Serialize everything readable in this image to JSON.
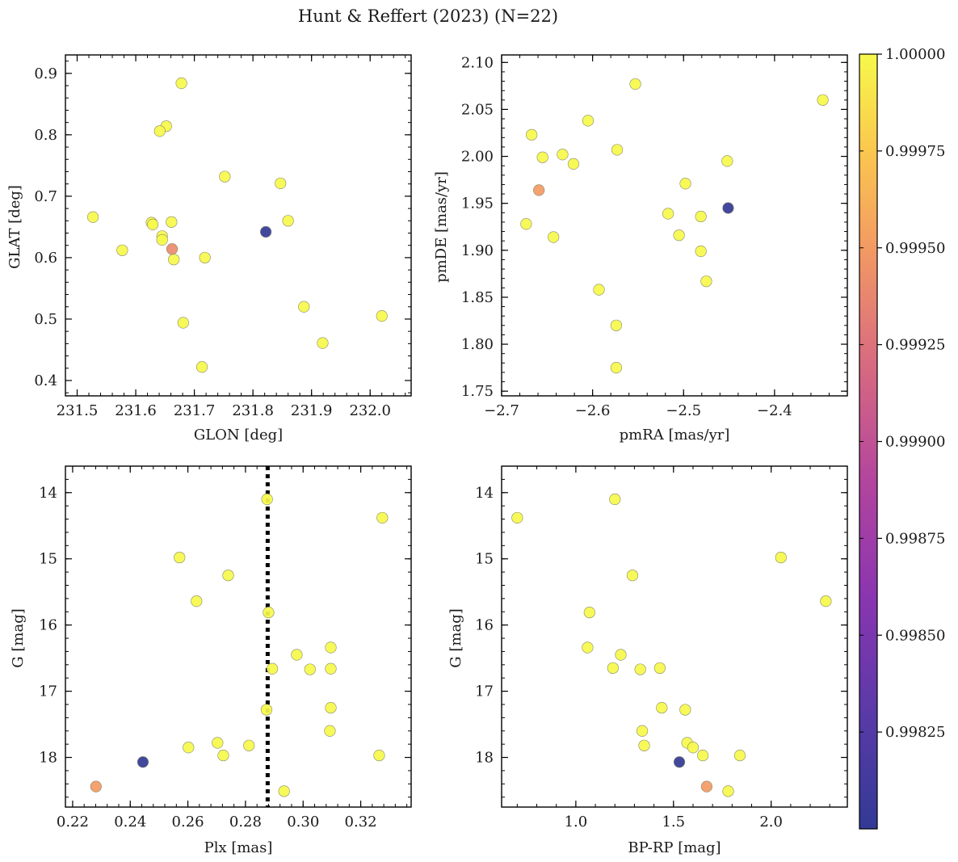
{
  "figure": {
    "title": "Hunt & Reffert (2023) (N=22)"
  },
  "colorbar": {
    "colormap": "plasma",
    "range": [
      0.998,
      1.0
    ],
    "ticks": [
      0.99825,
      0.9985,
      0.99875,
      0.999,
      0.99925,
      0.9995,
      0.99975,
      1.0
    ],
    "tick_labels": [
      "0.99825",
      "0.99850",
      "0.99875",
      "0.99900",
      "0.99925",
      "0.99950",
      "0.99975",
      "1.00000"
    ]
  },
  "chart_data": [
    {
      "type": "scatter",
      "id": "glon-glat",
      "xlabel": "GLON [deg]",
      "ylabel": "GLAT [deg]",
      "xlim": [
        231.48,
        232.07
      ],
      "ylim": [
        0.375,
        0.93
      ],
      "y_inverted": false,
      "xticks": [
        231.5,
        231.6,
        231.7,
        231.8,
        231.9,
        232.0
      ],
      "xtick_labels": [
        "231.5",
        "231.6",
        "231.7",
        "231.8",
        "231.9",
        "232.0"
      ],
      "yticks": [
        0.4,
        0.5,
        0.6,
        0.7,
        0.8,
        0.9
      ],
      "ytick_labels": [
        "0.4",
        "0.5",
        "0.6",
        "0.7",
        "0.8",
        "0.9"
      ],
      "points": [
        {
          "x": 231.678,
          "y": 0.884,
          "c": 1.0
        },
        {
          "x": 231.652,
          "y": 0.814,
          "c": 1.0
        },
        {
          "x": 231.641,
          "y": 0.806,
          "c": 1.0
        },
        {
          "x": 231.752,
          "y": 0.732,
          "c": 1.0
        },
        {
          "x": 231.847,
          "y": 0.721,
          "c": 1.0
        },
        {
          "x": 231.527,
          "y": 0.666,
          "c": 1.0
        },
        {
          "x": 231.86,
          "y": 0.66,
          "c": 1.0
        },
        {
          "x": 231.661,
          "y": 0.658,
          "c": 1.0
        },
        {
          "x": 231.627,
          "y": 0.657,
          "c": 1.0
        },
        {
          "x": 231.629,
          "y": 0.654,
          "c": 1.0
        },
        {
          "x": 231.822,
          "y": 0.642,
          "c": 0.998
        },
        {
          "x": 231.645,
          "y": 0.635,
          "c": 1.0
        },
        {
          "x": 231.645,
          "y": 0.629,
          "c": 1.0
        },
        {
          "x": 231.577,
          "y": 0.612,
          "c": 1.0
        },
        {
          "x": 231.662,
          "y": 0.614,
          "c": 0.9994
        },
        {
          "x": 231.718,
          "y": 0.6,
          "c": 1.0
        },
        {
          "x": 231.665,
          "y": 0.597,
          "c": 1.0
        },
        {
          "x": 231.887,
          "y": 0.52,
          "c": 1.0
        },
        {
          "x": 232.02,
          "y": 0.505,
          "c": 1.0
        },
        {
          "x": 231.681,
          "y": 0.494,
          "c": 1.0
        },
        {
          "x": 231.919,
          "y": 0.461,
          "c": 1.0
        },
        {
          "x": 231.713,
          "y": 0.422,
          "c": 1.0
        }
      ]
    },
    {
      "type": "scatter",
      "id": "pmra-pmde",
      "xlabel": "pmRA [mas/yr]",
      "ylabel": "pmDE [mas/yr]",
      "xlim": [
        -2.7,
        -2.32
      ],
      "ylim": [
        1.745,
        2.108
      ],
      "y_inverted": false,
      "xticks": [
        -2.7,
        -2.6,
        -2.5,
        -2.4
      ],
      "xtick_labels": [
        "−2.7",
        "−2.6",
        "−2.5",
        "−2.4"
      ],
      "yticks": [
        1.75,
        1.8,
        1.85,
        1.9,
        1.95,
        2.0,
        2.05,
        2.1
      ],
      "ytick_labels": [
        "1.75",
        "1.80",
        "1.85",
        "1.90",
        "1.95",
        "2.00",
        "2.05",
        "2.10"
      ],
      "points": [
        {
          "x": -2.553,
          "y": 2.077,
          "c": 1.0
        },
        {
          "x": -2.347,
          "y": 2.06,
          "c": 1.0
        },
        {
          "x": -2.605,
          "y": 2.038,
          "c": 1.0
        },
        {
          "x": -2.667,
          "y": 2.023,
          "c": 1.0
        },
        {
          "x": -2.573,
          "y": 2.007,
          "c": 1.0
        },
        {
          "x": -2.633,
          "y": 2.002,
          "c": 1.0
        },
        {
          "x": -2.655,
          "y": 1.999,
          "c": 1.0
        },
        {
          "x": -2.452,
          "y": 1.995,
          "c": 1.0
        },
        {
          "x": -2.621,
          "y": 1.992,
          "c": 1.0
        },
        {
          "x": -2.498,
          "y": 1.971,
          "c": 1.0
        },
        {
          "x": -2.659,
          "y": 1.964,
          "c": 0.9995
        },
        {
          "x": -2.451,
          "y": 1.945,
          "c": 0.998
        },
        {
          "x": -2.517,
          "y": 1.939,
          "c": 1.0
        },
        {
          "x": -2.481,
          "y": 1.936,
          "c": 1.0
        },
        {
          "x": -2.673,
          "y": 1.928,
          "c": 1.0
        },
        {
          "x": -2.505,
          "y": 1.916,
          "c": 1.0
        },
        {
          "x": -2.643,
          "y": 1.914,
          "c": 1.0
        },
        {
          "x": -2.481,
          "y": 1.899,
          "c": 1.0
        },
        {
          "x": -2.475,
          "y": 1.867,
          "c": 1.0
        },
        {
          "x": -2.593,
          "y": 1.858,
          "c": 1.0
        },
        {
          "x": -2.574,
          "y": 1.82,
          "c": 1.0
        },
        {
          "x": -2.574,
          "y": 1.775,
          "c": 1.0
        }
      ]
    },
    {
      "type": "scatter",
      "id": "plx-g",
      "xlabel": "Plx [mas]",
      "ylabel": "G [mag]",
      "xlim": [
        0.2175,
        0.3375
      ],
      "ylim": [
        13.6,
        18.75
      ],
      "y_inverted": true,
      "vline": {
        "x": 0.2877,
        "style": "dotted"
      },
      "xticks": [
        0.22,
        0.24,
        0.26,
        0.28,
        0.3,
        0.32
      ],
      "xtick_labels": [
        "0.22",
        "0.24",
        "0.26",
        "0.28",
        "0.30",
        "0.32"
      ],
      "yticks": [
        14,
        15,
        16,
        17,
        18
      ],
      "ytick_labels": [
        "14",
        "15",
        "16",
        "17",
        "18"
      ],
      "points": [
        {
          "x": 0.2875,
          "y": 14.1,
          "c": 1.0
        },
        {
          "x": 0.3275,
          "y": 14.38,
          "c": 1.0
        },
        {
          "x": 0.2571,
          "y": 14.98,
          "c": 1.0
        },
        {
          "x": 0.274,
          "y": 15.25,
          "c": 1.0
        },
        {
          "x": 0.263,
          "y": 15.64,
          "c": 1.0
        },
        {
          "x": 0.288,
          "y": 15.81,
          "c": 1.0
        },
        {
          "x": 0.3096,
          "y": 16.34,
          "c": 1.0
        },
        {
          "x": 0.2978,
          "y": 16.45,
          "c": 1.0
        },
        {
          "x": 0.2893,
          "y": 16.66,
          "c": 1.0
        },
        {
          "x": 0.3024,
          "y": 16.67,
          "c": 1.0
        },
        {
          "x": 0.3096,
          "y": 16.66,
          "c": 1.0
        },
        {
          "x": 0.3096,
          "y": 17.25,
          "c": 1.0
        },
        {
          "x": 0.2873,
          "y": 17.28,
          "c": 1.0
        },
        {
          "x": 0.3093,
          "y": 17.6,
          "c": 1.0
        },
        {
          "x": 0.2703,
          "y": 17.78,
          "c": 1.0
        },
        {
          "x": 0.2812,
          "y": 17.82,
          "c": 1.0
        },
        {
          "x": 0.2602,
          "y": 17.85,
          "c": 1.0
        },
        {
          "x": 0.2723,
          "y": 17.97,
          "c": 1.0
        },
        {
          "x": 0.3264,
          "y": 17.97,
          "c": 1.0
        },
        {
          "x": 0.2444,
          "y": 18.07,
          "c": 0.998
        },
        {
          "x": 0.2281,
          "y": 18.44,
          "c": 0.9995
        },
        {
          "x": 0.2934,
          "y": 18.51,
          "c": 1.0
        }
      ]
    },
    {
      "type": "scatter",
      "id": "bprp-g",
      "xlabel": "BP-RP [mag]",
      "ylabel": "G [mag]",
      "xlim": [
        0.62,
        2.39
      ],
      "ylim": [
        13.6,
        18.75
      ],
      "y_inverted": true,
      "xticks": [
        1.0,
        1.5,
        2.0
      ],
      "xtick_labels": [
        "1.0",
        "1.5",
        "2.0"
      ],
      "yticks": [
        14,
        15,
        16,
        17,
        18
      ],
      "ytick_labels": [
        "14",
        "15",
        "16",
        "17",
        "18"
      ],
      "points": [
        {
          "x": 1.2,
          "y": 14.1,
          "c": 1.0
        },
        {
          "x": 0.7,
          "y": 14.38,
          "c": 1.0
        },
        {
          "x": 2.05,
          "y": 14.98,
          "c": 1.0
        },
        {
          "x": 1.29,
          "y": 15.25,
          "c": 1.0
        },
        {
          "x": 2.28,
          "y": 15.64,
          "c": 1.0
        },
        {
          "x": 1.07,
          "y": 15.81,
          "c": 1.0
        },
        {
          "x": 1.06,
          "y": 16.34,
          "c": 1.0
        },
        {
          "x": 1.23,
          "y": 16.45,
          "c": 1.0
        },
        {
          "x": 1.19,
          "y": 16.65,
          "c": 1.0
        },
        {
          "x": 1.33,
          "y": 16.67,
          "c": 1.0
        },
        {
          "x": 1.43,
          "y": 16.65,
          "c": 1.0
        },
        {
          "x": 1.44,
          "y": 17.25,
          "c": 1.0
        },
        {
          "x": 1.56,
          "y": 17.28,
          "c": 1.0
        },
        {
          "x": 1.34,
          "y": 17.6,
          "c": 1.0
        },
        {
          "x": 1.57,
          "y": 17.78,
          "c": 1.0
        },
        {
          "x": 1.35,
          "y": 17.82,
          "c": 1.0
        },
        {
          "x": 1.6,
          "y": 17.85,
          "c": 1.0
        },
        {
          "x": 1.65,
          "y": 17.97,
          "c": 1.0
        },
        {
          "x": 1.84,
          "y": 17.97,
          "c": 1.0
        },
        {
          "x": 1.53,
          "y": 18.07,
          "c": 0.998
        },
        {
          "x": 1.67,
          "y": 18.44,
          "c": 0.9995
        },
        {
          "x": 1.78,
          "y": 18.51,
          "c": 1.0
        }
      ]
    }
  ]
}
